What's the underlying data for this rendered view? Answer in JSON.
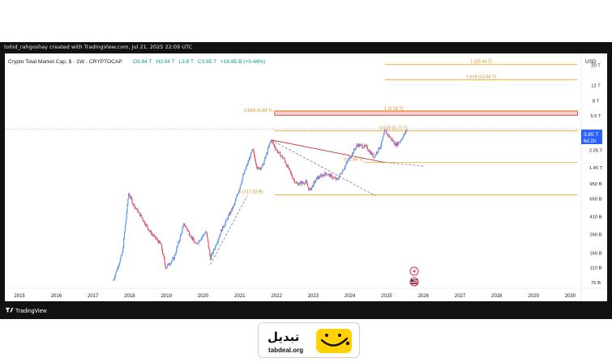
{
  "header": {
    "meta_line": "tohid_rahgoshay created with TradingView.com, Jul 21, 2025 22:09 UTC"
  },
  "legend": {
    "symbol": "Crypto Total Market Cap, $ · 1W · CRYPTOCAP",
    "open": "O3.84 T",
    "high": "H3.94 T",
    "low": "L3.8 T",
    "close": "C3.85 T",
    "change": "+16.85 B (+0.44%)"
  },
  "axis": {
    "currency": "USD",
    "price_badge": "3.85 T",
    "badge_time": "6d 2h"
  },
  "footer": {
    "brand": "TradingView"
  },
  "logo": {
    "name": "تبدیل",
    "url": "tabdeal.org"
  },
  "colors": {
    "up": "#4f8ff0",
    "down": "#e84a5f",
    "level": "#f5a623",
    "zone_fill": "#f2b8b8",
    "zone_stroke": "#c0392b",
    "trend": "#c62828",
    "badge": "#2962ff",
    "logo_yellow": "#ffd200"
  },
  "chart_data": {
    "type": "candlestick",
    "title": "Crypto Total Market Cap, $ · 1W · CRYPTOCAP",
    "y_scale": "log",
    "ylim": [
      65000000000.0,
      25000000000000.0
    ],
    "xlim": [
      2014.6,
      2030.3
    ],
    "x_ticks": [
      "2015",
      "2016",
      "2017",
      "2018",
      "2019",
      "2020",
      "2021",
      "2022",
      "2023",
      "2024",
      "2025",
      "2026",
      "2027",
      "2028",
      "2029",
      "2030"
    ],
    "y_ticks": [
      {
        "label": "20 T",
        "value": 20000000000000.0
      },
      {
        "label": "12 T",
        "value": 12000000000000.0
      },
      {
        "label": "8 T",
        "value": 8000000000000.0
      },
      {
        "label": "5.5 T",
        "value": 5500000000000.0
      },
      {
        "label": "3.85 T",
        "value": 3850000000000.0
      },
      {
        "label": "2.25 T",
        "value": 2250000000000.0
      },
      {
        "label": "1.45 T",
        "value": 1450000000000.0
      },
      {
        "label": "950 B",
        "value": 950000000000.0
      },
      {
        "label": "650 B",
        "value": 650000000000.0
      },
      {
        "label": "410 B",
        "value": 410000000000.0
      },
      {
        "label": "260 B",
        "value": 260000000000.0
      },
      {
        "label": "160 B",
        "value": 160000000000.0
      },
      {
        "label": "110 B",
        "value": 110000000000.0
      },
      {
        "label": "75 B",
        "value": 75000000000.0
      }
    ],
    "price_path": [
      [
        2017.55,
        80000000000.0
      ],
      [
        2017.8,
        160000000000.0
      ],
      [
        2017.97,
        750000000000.0
      ],
      [
        2018.1,
        560000000000.0
      ],
      [
        2018.3,
        420000000000.0
      ],
      [
        2018.55,
        280000000000.0
      ],
      [
        2018.85,
        200000000000.0
      ],
      [
        2018.98,
        110000000000.0
      ],
      [
        2019.2,
        140000000000.0
      ],
      [
        2019.48,
        340000000000.0
      ],
      [
        2019.8,
        200000000000.0
      ],
      [
        2020.08,
        280000000000.0
      ],
      [
        2020.2,
        140000000000.0
      ],
      [
        2020.5,
        290000000000.0
      ],
      [
        2020.85,
        560000000000.0
      ],
      [
        2021.1,
        1200000000000.0
      ],
      [
        2021.35,
        2300000000000.0
      ],
      [
        2021.48,
        1400000000000.0
      ],
      [
        2021.62,
        1500000000000.0
      ],
      [
        2021.85,
        2950000000000.0
      ],
      [
        2022.02,
        2200000000000.0
      ],
      [
        2022.2,
        1800000000000.0
      ],
      [
        2022.45,
        1100000000000.0
      ],
      [
        2022.55,
        950000000000.0
      ],
      [
        2022.8,
        1000000000000.0
      ],
      [
        2022.9,
        800000000000.0
      ],
      [
        2023.1,
        1100000000000.0
      ],
      [
        2023.35,
        1250000000000.0
      ],
      [
        2023.65,
        1050000000000.0
      ],
      [
        2023.9,
        1600000000000.0
      ],
      [
        2024.2,
        2600000000000.0
      ],
      [
        2024.45,
        2450000000000.0
      ],
      [
        2024.65,
        1900000000000.0
      ],
      [
        2024.85,
        2600000000000.0
      ],
      [
        2024.95,
        3700000000000.0
      ],
      [
        2025.25,
        2600000000000.0
      ],
      [
        2025.35,
        2800000000000.0
      ],
      [
        2025.5,
        3500000000000.0
      ],
      [
        2025.55,
        3850000000000.0
      ]
    ],
    "fib_levels": [
      {
        "label": "1 (20.44 T)",
        "value": 20440000000000.0,
        "x0": 2024.95,
        "x1": 2030.2
      },
      {
        "label": "1.618 (13.83 T)",
        "value": 13830000000000.0,
        "x0": 2024.95,
        "x1": 2030.2
      },
      {
        "label": "1 (6.14 T)",
        "value": 6140000000000.0,
        "x0": 2021.95,
        "x1": 2030.2
      },
      {
        "label": "0.618 (3.71 T)",
        "value": 3710000000000.0,
        "x0": 2021.95,
        "x1": 2030.2
      },
      {
        "label": "0 (1.65 T)",
        "value": 1650000000000.0,
        "x0": 2024.4,
        "x1": 2030.2
      },
      {
        "label": "0 (717.92 B)",
        "value": 717920000000.0,
        "x0": 2021.95,
        "x1": 2030.2
      }
    ],
    "zone": {
      "label": "0.618 (5.69 T)",
      "low": 5550000000000.0,
      "high": 6200000000000.0,
      "x0": 2021.95,
      "x1": 2030.2
    },
    "trendlines": [
      {
        "style": "solid",
        "from": [
          2021.85,
          2950000000000.0
        ],
        "to": [
          2024.95,
          1650000000000.0
        ]
      },
      {
        "style": "dashed",
        "from": [
          2021.85,
          2950000000000.0
        ],
        "to": [
          2024.7,
          700000000000.0
        ]
      },
      {
        "style": "dashed",
        "from": [
          2024.95,
          1650000000000.0
        ],
        "to": [
          2026.0,
          1500000000000.0
        ]
      },
      {
        "style": "dashed",
        "from": [
          2020.2,
          120000000000.0
        ],
        "to": [
          2021.2,
          700000000000.0
        ]
      }
    ]
  }
}
